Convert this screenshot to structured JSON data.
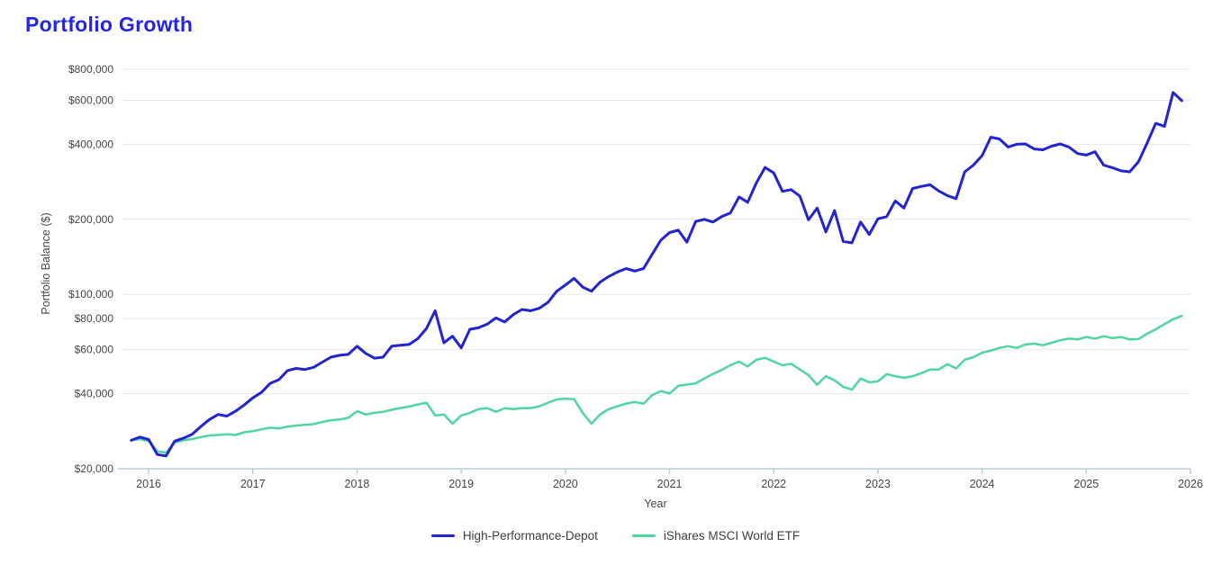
{
  "page": {
    "title": "Portfolio Growth"
  },
  "theme": {
    "background": "#ffffff",
    "title_color": "#2424e8",
    "grid_color": "#e8e8e8",
    "axis_line_color": "#bdc9dd",
    "tick_label_color": "#464646",
    "legend_text_color": "#3b3e43"
  },
  "chart_data": {
    "type": "line",
    "title": "Portfolio Growth",
    "xlabel": "Year",
    "ylabel": "Portfolio Balance ($)",
    "y_scale": "log",
    "grid": true,
    "legend_position": "bottom",
    "xlim": [
      2015.74,
      2026.0
    ],
    "ylim": [
      20000,
      883000
    ],
    "x_ticks": [
      2016,
      2017,
      2018,
      2019,
      2020,
      2021,
      2022,
      2023,
      2024,
      2025,
      2026
    ],
    "y_ticks": [
      20000,
      40000,
      60000,
      80000,
      100000,
      200000,
      400000,
      600000,
      800000
    ],
    "y_tick_labels": [
      "$20,000",
      "$40,000",
      "$60,000",
      "$80,000",
      "$100,000",
      "$200,000",
      "$400,000",
      "$600,000",
      "$800,000"
    ],
    "x_start": {
      "year": 2015,
      "month": 11
    },
    "interval": "monthly",
    "series": [
      {
        "name": "High-Performance-Depot",
        "color": "#2323cf",
        "stroke_width": 3,
        "values": [
          26000,
          26800,
          26200,
          22800,
          22500,
          25800,
          26500,
          27500,
          29500,
          31500,
          33000,
          32500,
          34000,
          36000,
          38500,
          40500,
          44000,
          45500,
          49500,
          50500,
          50000,
          51000,
          53500,
          56000,
          57000,
          57500,
          62000,
          58000,
          55500,
          56000,
          62000,
          62500,
          63000,
          66500,
          73000,
          86000,
          64000,
          68000,
          61000,
          72500,
          73500,
          76000,
          80500,
          77500,
          83000,
          87000,
          86000,
          88000,
          93000,
          103000,
          109000,
          116000,
          107000,
          103000,
          112000,
          118000,
          123000,
          127000,
          124000,
          127000,
          145000,
          165000,
          177000,
          181000,
          162000,
          196000,
          200000,
          195000,
          205000,
          212000,
          246000,
          234000,
          280000,
          323000,
          307000,
          259000,
          263000,
          248000,
          199000,
          222000,
          178000,
          217000,
          163000,
          161000,
          195000,
          174000,
          201000,
          205000,
          237000,
          222000,
          266000,
          271000,
          275000,
          260000,
          249000,
          242000,
          310000,
          330000,
          360000,
          427000,
          420000,
          390000,
          400000,
          401000,
          383000,
          380000,
          393000,
          401000,
          390000,
          367000,
          362000,
          373000,
          330000,
          322000,
          313000,
          310000,
          340000,
          404000,
          485000,
          472000,
          645000,
          598000
        ]
      },
      {
        "name": "iShares MSCI World ETF",
        "color": "#50d5a0",
        "stroke_width": 2.5,
        "values": [
          26000,
          26300,
          25800,
          23500,
          23200,
          25500,
          26000,
          26300,
          26800,
          27200,
          27300,
          27500,
          27300,
          28000,
          28300,
          28800,
          29200,
          29000,
          29500,
          29800,
          30000,
          30200,
          30800,
          31300,
          31500,
          32000,
          34000,
          33000,
          33500,
          33800,
          34500,
          35000,
          35500,
          36200,
          36800,
          32700,
          33000,
          30300,
          32700,
          33500,
          34700,
          35000,
          33800,
          35000,
          34700,
          35000,
          35000,
          35600,
          36800,
          37900,
          38200,
          38000,
          33500,
          30300,
          33000,
          34700,
          35600,
          36500,
          37000,
          36500,
          39500,
          41000,
          40000,
          43000,
          43500,
          44000,
          46000,
          48000,
          49800,
          52000,
          53800,
          51400,
          54700,
          55700,
          53800,
          52000,
          52700,
          50000,
          47500,
          43400,
          47000,
          45200,
          42600,
          41500,
          46000,
          44400,
          44800,
          47900,
          47000,
          46300,
          47000,
          48300,
          50000,
          50000,
          52500,
          50500,
          54700,
          56000,
          58400,
          59500,
          61000,
          62000,
          61000,
          63000,
          63500,
          62500,
          64000,
          65500,
          66500,
          66000,
          67500,
          66500,
          68000,
          66800,
          67500,
          66000,
          66200,
          69500,
          72500,
          76000,
          79500,
          82000
        ]
      }
    ]
  }
}
